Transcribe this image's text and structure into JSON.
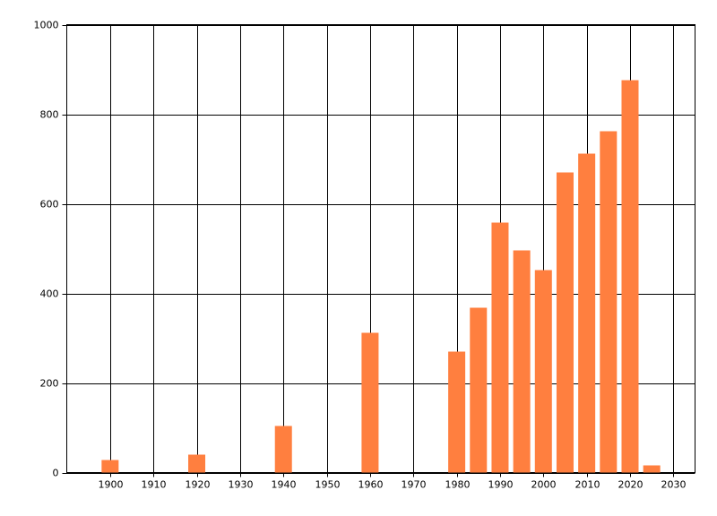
{
  "chart_data": {
    "type": "bar",
    "x": [
      1900,
      1920,
      1940,
      1960,
      1980,
      1985,
      1990,
      1995,
      2000,
      2005,
      2010,
      2015,
      2020,
      2025
    ],
    "values": [
      28,
      40,
      104,
      312,
      270,
      368,
      558,
      496,
      452,
      670,
      712,
      762,
      876,
      16
    ],
    "color": "#ff7f3f",
    "xlim": [
      1890,
      2035
    ],
    "xticks": [
      1900,
      1910,
      1920,
      1930,
      1940,
      1950,
      1960,
      1970,
      1980,
      1990,
      2000,
      2010,
      2020,
      2030
    ],
    "ylim": [
      0,
      1000
    ],
    "yticks": [
      0,
      200,
      400,
      600,
      800,
      1000
    ],
    "grid": true
  }
}
